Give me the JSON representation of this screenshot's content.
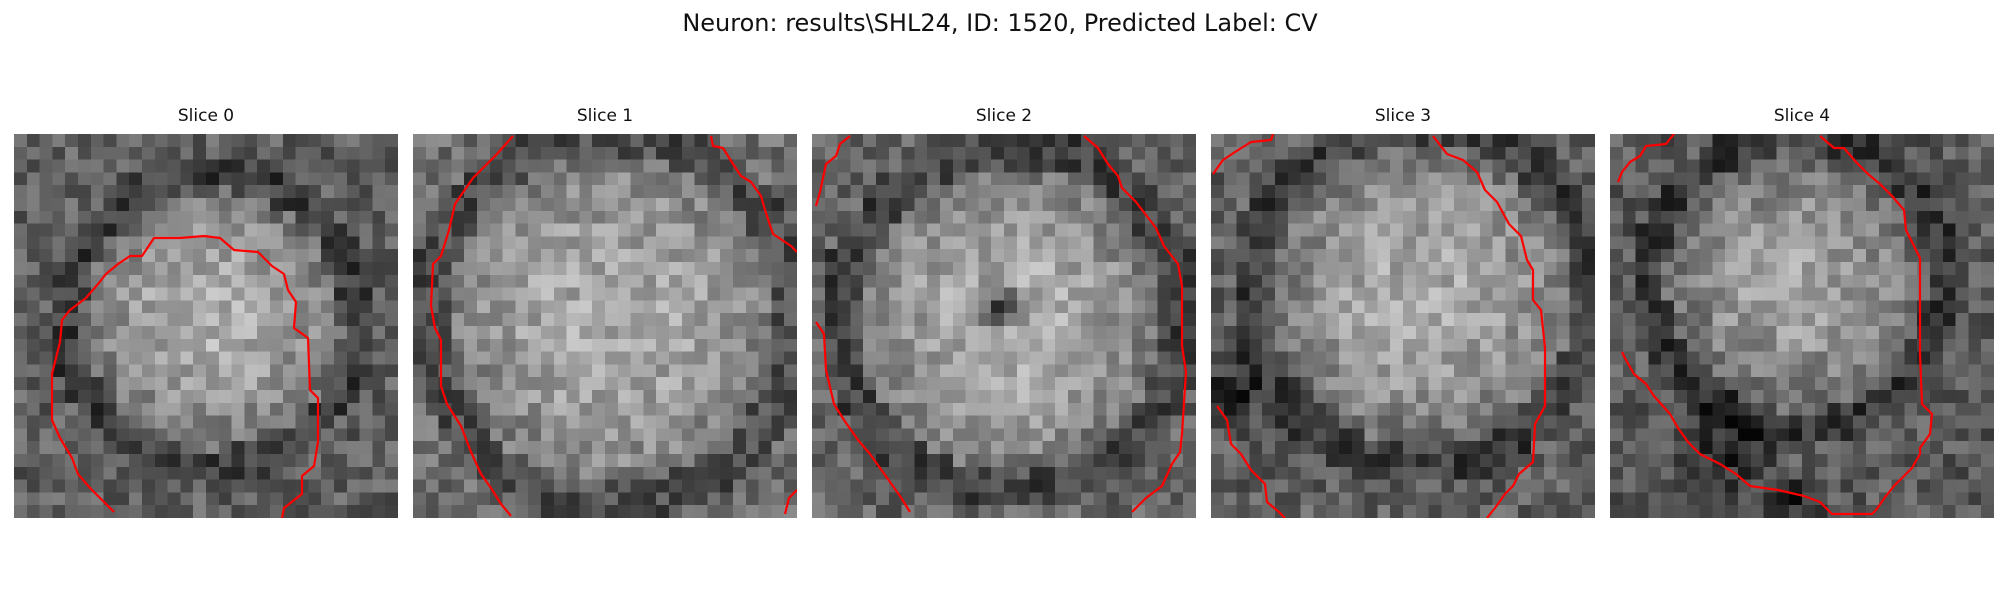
{
  "figure": {
    "title": "Neuron: results\\SHL24, ID: 1520, Predicted Label: CV"
  },
  "slices": [
    {
      "label": "Slice 0"
    },
    {
      "label": "Slice 1"
    },
    {
      "label": "Slice 2"
    },
    {
      "label": "Slice 3"
    },
    {
      "label": "Slice 4"
    }
  ],
  "colors": {
    "contour": "#ff0000",
    "colormap": "gray"
  }
}
